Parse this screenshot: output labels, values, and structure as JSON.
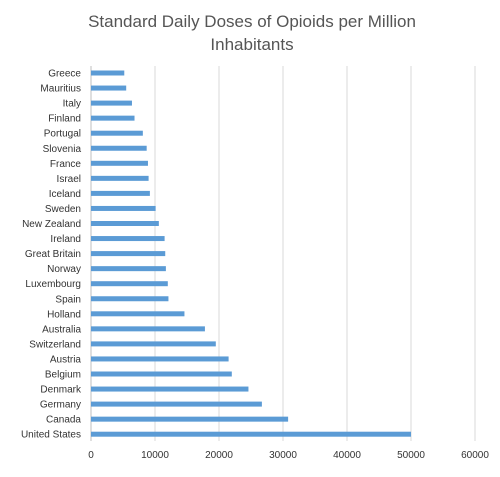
{
  "chart_data": {
    "type": "bar",
    "orientation": "horizontal",
    "title_lines": [
      "Standard Daily Doses of Opioids per Million",
      "Inhabitants"
    ],
    "xlabel": "",
    "ylabel": "",
    "xlim": [
      0,
      60000
    ],
    "xticks": [
      0,
      10000,
      20000,
      30000,
      40000,
      50000,
      60000
    ],
    "xtick_labels": [
      "0",
      "10000",
      "20000",
      "30000",
      "40000",
      "50000",
      "60000"
    ],
    "grid": "vertical",
    "legend": "none",
    "bar_color": "#5b9bd5",
    "categories": [
      "Greece",
      "Mauritius",
      "Italy",
      "Finland",
      "Portugal",
      "Slovenia",
      "France",
      "Israel",
      "Iceland",
      "Sweden",
      "New Zealand",
      "Ireland",
      "Great Britain",
      "Norway",
      "Luxembourg",
      "Spain",
      "Holland",
      "Australia",
      "Switzerland",
      "Austria",
      "Belgium",
      "Denmark",
      "Germany",
      "Canada",
      "United States"
    ],
    "values": [
      5200,
      5500,
      6400,
      6800,
      8100,
      8700,
      8900,
      9000,
      9200,
      10100,
      10600,
      11500,
      11600,
      11700,
      12000,
      12100,
      14600,
      17800,
      19500,
      21500,
      22000,
      24600,
      26700,
      30800,
      50000
    ]
  }
}
